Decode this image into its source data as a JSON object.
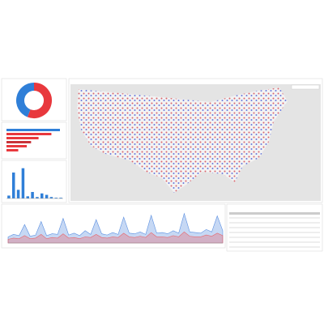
{
  "donut": {
    "values": [
      56,
      44
    ],
    "colors": [
      "#e8383d",
      "#2f7fd8"
    ]
  },
  "bars": {
    "values": [
      100,
      84,
      60,
      46,
      38,
      22
    ],
    "colors": [
      "#2f7fd8",
      "#e8383d",
      "#e8383d",
      "#c8343a",
      "#e8383d",
      "#e8383d"
    ]
  },
  "histogram": {
    "values": [
      4,
      36,
      12,
      42,
      3,
      9,
      2,
      7,
      5,
      2,
      1,
      1
    ],
    "color": "#2f7fd8",
    "ylim": [
      0,
      45
    ]
  },
  "line_chart": {
    "ylim": [
      0,
      50
    ],
    "series": [
      {
        "color": "#5b8fe0",
        "values": [
          10,
          14,
          12,
          30,
          11,
          13,
          35,
          12,
          15,
          14,
          40,
          13,
          16,
          12,
          20,
          14,
          38,
          15,
          13,
          17,
          14,
          42,
          16,
          15,
          18,
          14,
          45,
          16,
          17,
          15,
          20,
          16,
          48,
          18,
          17,
          16,
          22,
          18,
          44,
          20
        ]
      },
      {
        "color": "#e8686d",
        "values": [
          6,
          8,
          7,
          12,
          7,
          8,
          14,
          7,
          9,
          8,
          15,
          8,
          9,
          7,
          10,
          9,
          14,
          9,
          8,
          10,
          9,
          16,
          10,
          9,
          11,
          9,
          17,
          10,
          10,
          9,
          12,
          10,
          18,
          11,
          10,
          10,
          13,
          11,
          16,
          12
        ]
      }
    ]
  }
}
